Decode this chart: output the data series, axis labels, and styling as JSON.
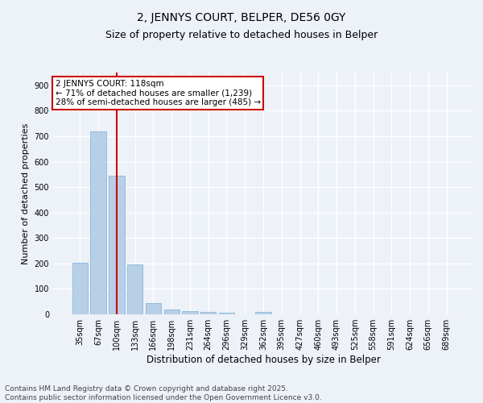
{
  "title": "2, JENNYS COURT, BELPER, DE56 0GY",
  "subtitle": "Size of property relative to detached houses in Belper",
  "xlabel": "Distribution of detached houses by size in Belper",
  "ylabel": "Number of detached properties",
  "categories": [
    "35sqm",
    "67sqm",
    "100sqm",
    "133sqm",
    "166sqm",
    "198sqm",
    "231sqm",
    "264sqm",
    "296sqm",
    "329sqm",
    "362sqm",
    "395sqm",
    "427sqm",
    "460sqm",
    "493sqm",
    "525sqm",
    "558sqm",
    "591sqm",
    "624sqm",
    "656sqm",
    "689sqm"
  ],
  "values": [
    202,
    720,
    545,
    196,
    45,
    18,
    14,
    10,
    7,
    0,
    8,
    0,
    0,
    0,
    0,
    0,
    0,
    0,
    0,
    0,
    0
  ],
  "bar_color": "#b8cfe8",
  "bar_edge_color": "#7aafd4",
  "vline_x": 2.0,
  "vline_color": "#cc0000",
  "annotation_text": "2 JENNYS COURT: 118sqm\n← 71% of detached houses are smaller (1,239)\n28% of semi-detached houses are larger (485) →",
  "annotation_box_color": "#ffffff",
  "annotation_box_edge": "#cc0000",
  "footer_text": "Contains HM Land Registry data © Crown copyright and database right 2025.\nContains public sector information licensed under the Open Government Licence v3.0.",
  "ylim": [
    0,
    950
  ],
  "yticks": [
    0,
    100,
    200,
    300,
    400,
    500,
    600,
    700,
    800,
    900
  ],
  "bg_color": "#edf1f8",
  "grid_color": "#ffffff",
  "title_fontsize": 10,
  "subtitle_fontsize": 9,
  "tick_fontsize": 7,
  "ylabel_fontsize": 8,
  "xlabel_fontsize": 8.5,
  "footer_fontsize": 6.5,
  "annotation_fontsize": 7.5
}
